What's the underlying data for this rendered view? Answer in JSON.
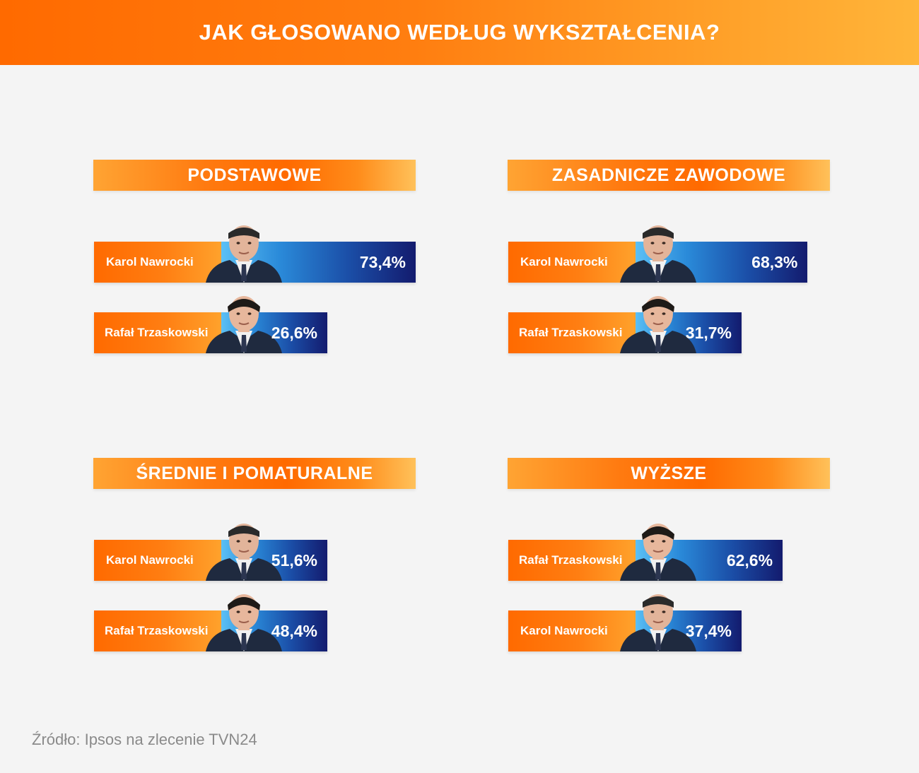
{
  "header": {
    "title": "JAK GŁOSOWANO WEDŁUG WYKSZTAŁCENIA?"
  },
  "colors": {
    "orange": "#ff6a00",
    "navy": "#131b6e",
    "lightblue": "#5bc0f5",
    "background": "#f4f4f4"
  },
  "panels": [
    {
      "title": "PODSTAWOWE",
      "bars": [
        {
          "name": "Karol Nawrocki",
          "label": "73,4%",
          "value": 73.4,
          "portrait": "nawrocki"
        },
        {
          "name": "Rafał Trzaskowski",
          "label": "26,6%",
          "value": 26.6,
          "portrait": "trzaskowski"
        }
      ]
    },
    {
      "title": "ZASADNICZE ZAWODOWE",
      "bars": [
        {
          "name": "Karol Nawrocki",
          "label": "68,3%",
          "value": 68.3,
          "portrait": "nawrocki"
        },
        {
          "name": "Rafał Trzaskowski",
          "label": "31,7%",
          "value": 31.7,
          "portrait": "trzaskowski"
        }
      ]
    },
    {
      "title": "ŚREDNIE I POMATURALNE",
      "bars": [
        {
          "name": "Karol Nawrocki",
          "label": "51,6%",
          "value": 51.6,
          "portrait": "nawrocki"
        },
        {
          "name": "Rafał Trzaskowski",
          "label": "48,4%",
          "value": 48.4,
          "portrait": "trzaskowski"
        }
      ]
    },
    {
      "title": "WYŻSZE",
      "bars": [
        {
          "name": "Rafał Trzaskowski",
          "label": "62,6%",
          "value": 62.6,
          "portrait": "trzaskowski"
        },
        {
          "name": "Karol Nawrocki",
          "label": "37,4%",
          "value": 37.4,
          "portrait": "nawrocki"
        }
      ]
    }
  ],
  "chart_data": [
    {
      "type": "bar",
      "title": "PODSTAWOWE",
      "categories": [
        "Karol Nawrocki",
        "Rafał Trzaskowski"
      ],
      "values": [
        73.4,
        26.6
      ]
    },
    {
      "type": "bar",
      "title": "ZASADNICZE ZAWODOWE",
      "categories": [
        "Karol Nawrocki",
        "Rafał Trzaskowski"
      ],
      "values": [
        68.3,
        31.7
      ]
    },
    {
      "type": "bar",
      "title": "ŚREDNIE I POMATURALNE",
      "categories": [
        "Karol Nawrocki",
        "Rafał Trzaskowski"
      ],
      "values": [
        51.6,
        48.4
      ]
    },
    {
      "type": "bar",
      "title": "WYŻSZE",
      "categories": [
        "Rafał Trzaskowski",
        "Karol Nawrocki"
      ],
      "values": [
        62.6,
        37.4
      ]
    }
  ],
  "footer": {
    "source": "Źródło: Ipsos na zlecenie TVN24"
  }
}
